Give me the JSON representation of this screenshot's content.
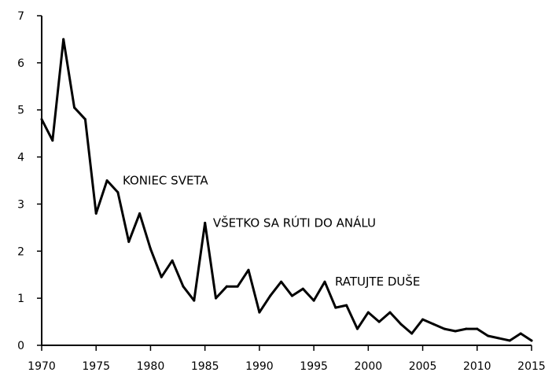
{
  "chart_data": {
    "type": "line",
    "title": "",
    "xlabel": "",
    "ylabel": "",
    "xlim": [
      1970,
      2015
    ],
    "ylim": [
      0,
      7
    ],
    "grid": false,
    "x_ticks": [
      "1970",
      "1975",
      "1980",
      "1985",
      "1990",
      "1995",
      "2000",
      "2005",
      "2010",
      "2015"
    ],
    "y_ticks": [
      "0",
      "1",
      "2",
      "3",
      "4",
      "5",
      "6",
      "7"
    ],
    "series": [
      {
        "x": [
          1970,
          1971,
          1972,
          1973,
          1974,
          1975,
          1976,
          1977,
          1978,
          1979,
          1980,
          1981,
          1982,
          1983,
          1984,
          1985,
          1986,
          1987,
          1988,
          1989,
          1990,
          1991,
          1992,
          1993,
          1994,
          1995,
          1996,
          1997,
          1998,
          1999,
          2000,
          2001,
          2002,
          2003,
          2004,
          2005,
          2006,
          2007,
          2008,
          2009,
          2010,
          2011,
          2012,
          2013,
          2014,
          2015
        ],
        "values": [
          4.8,
          4.35,
          6.5,
          5.05,
          4.8,
          2.8,
          3.5,
          3.25,
          2.2,
          2.8,
          2.05,
          1.45,
          1.8,
          1.25,
          0.95,
          2.6,
          1.0,
          1.25,
          1.25,
          1.6,
          0.7,
          1.05,
          1.35,
          1.05,
          1.2,
          0.95,
          1.35,
          0.8,
          0.85,
          0.35,
          0.7,
          0.5,
          0.7,
          0.45,
          0.25,
          0.55,
          0.45,
          0.35,
          0.3,
          0.35,
          0.35,
          0.2,
          0.15,
          0.1,
          0.25,
          0.1
        ]
      }
    ],
    "annotations": [
      {
        "text": "KONIEC SVETA",
        "x": 1976.5,
        "y": 3.5
      },
      {
        "text": "VŠETKO SA RÚTI DO ANÁLU",
        "x": 1984.8,
        "y": 2.6
      },
      {
        "text": "RATUJTE DUŠE",
        "x": 1996,
        "y": 1.35
      }
    ]
  }
}
